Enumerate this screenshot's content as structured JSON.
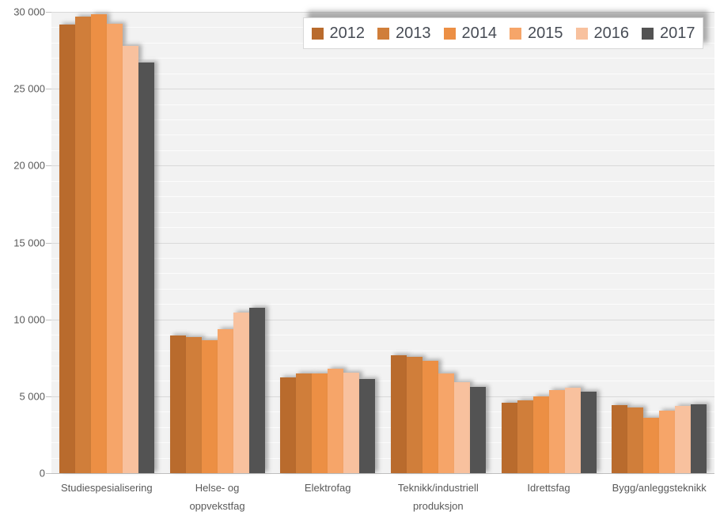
{
  "chart_data": {
    "type": "bar",
    "title": "",
    "xlabel": "",
    "ylabel": "",
    "ylim": [
      0,
      30000
    ],
    "ytick_step": 5000,
    "minor_gridline_step": 1000,
    "grid": true,
    "legend_position": "top-right",
    "yticks": [
      {
        "label": "0",
        "value": 0
      },
      {
        "label": "5 000",
        "value": 5000
      },
      {
        "label": "10 000",
        "value": 10000
      },
      {
        "label": "15 000",
        "value": 15000
      },
      {
        "label": "20 000",
        "value": 20000
      },
      {
        "label": "25 000",
        "value": 25000
      },
      {
        "label": "30 000",
        "value": 30000
      }
    ],
    "categories": [
      "Studiespesialisering",
      "Helse- og\noppvekstfag",
      "Elektrofag",
      "Teknikk/industriell\nproduksjon",
      "Idrettsfag",
      "Bygg/anleggsteknikk"
    ],
    "series": [
      {
        "name": "2012",
        "color": "#B96B2D",
        "values": [
          29200,
          8950,
          6250,
          7650,
          4600,
          4450
        ]
      },
      {
        "name": "2013",
        "color": "#D07E3A",
        "values": [
          29700,
          8850,
          6500,
          7550,
          4750,
          4250
        ]
      },
      {
        "name": "2014",
        "color": "#EC8F44",
        "values": [
          29850,
          8650,
          6500,
          7300,
          5000,
          3600
        ]
      },
      {
        "name": "2015",
        "color": "#F6A569",
        "values": [
          29250,
          9350,
          6800,
          6500,
          5400,
          4050
        ]
      },
      {
        "name": "2016",
        "color": "#F8C19E",
        "values": [
          27800,
          10450,
          6550,
          5900,
          5550,
          4350
        ]
      },
      {
        "name": "2017",
        "color": "#535353",
        "values": [
          26700,
          10750,
          6150,
          5600,
          5300,
          4500
        ]
      }
    ]
  }
}
